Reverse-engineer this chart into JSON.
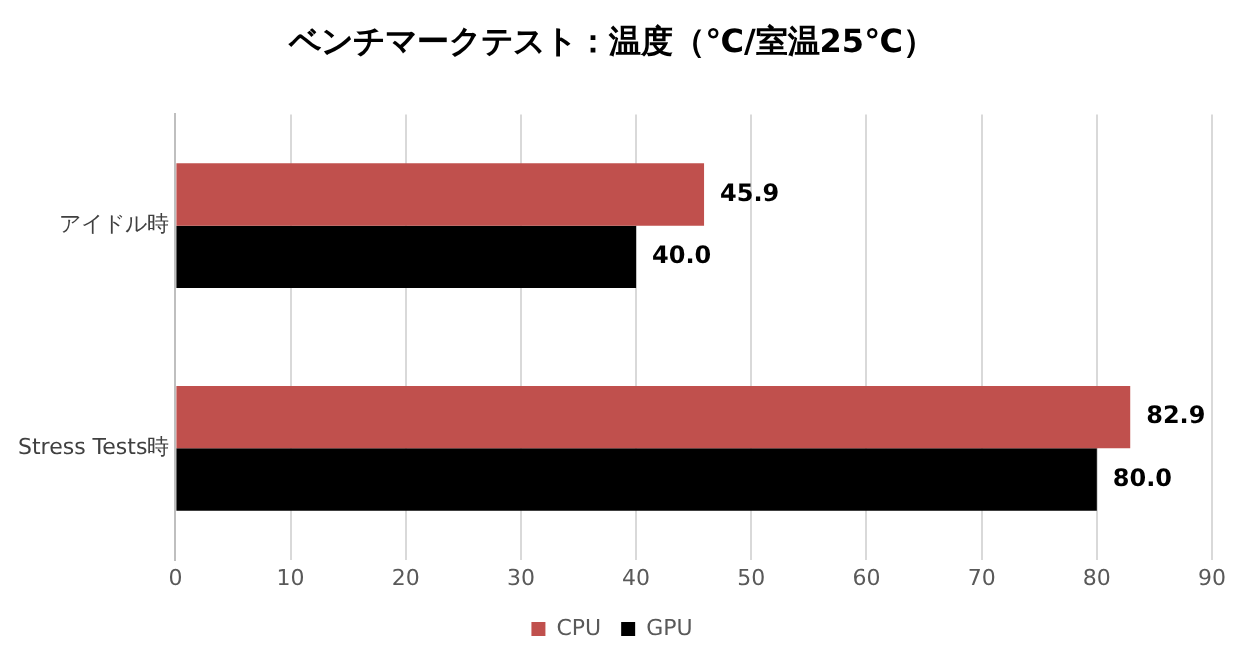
{
  "chart_data": {
    "type": "bar",
    "orientation": "horizontal",
    "title": "ベンチマークテスト：温度（℃/室温25℃）",
    "categories": [
      "アイドル時",
      "Stress Tests時"
    ],
    "series": [
      {
        "name": "CPU",
        "color": "#c0504d",
        "values": [
          45.9,
          82.9
        ],
        "value_labels": [
          "45.9",
          "82.9"
        ]
      },
      {
        "name": "GPU",
        "color": "#000000",
        "values": [
          40,
          80
        ],
        "value_labels": [
          "40.0",
          "80.0"
        ]
      }
    ],
    "xlim": [
      0,
      90
    ],
    "xticks": [
      0,
      10,
      20,
      30,
      40,
      50,
      60,
      70,
      80,
      90
    ],
    "grid": "x",
    "legend": "bottom"
  }
}
